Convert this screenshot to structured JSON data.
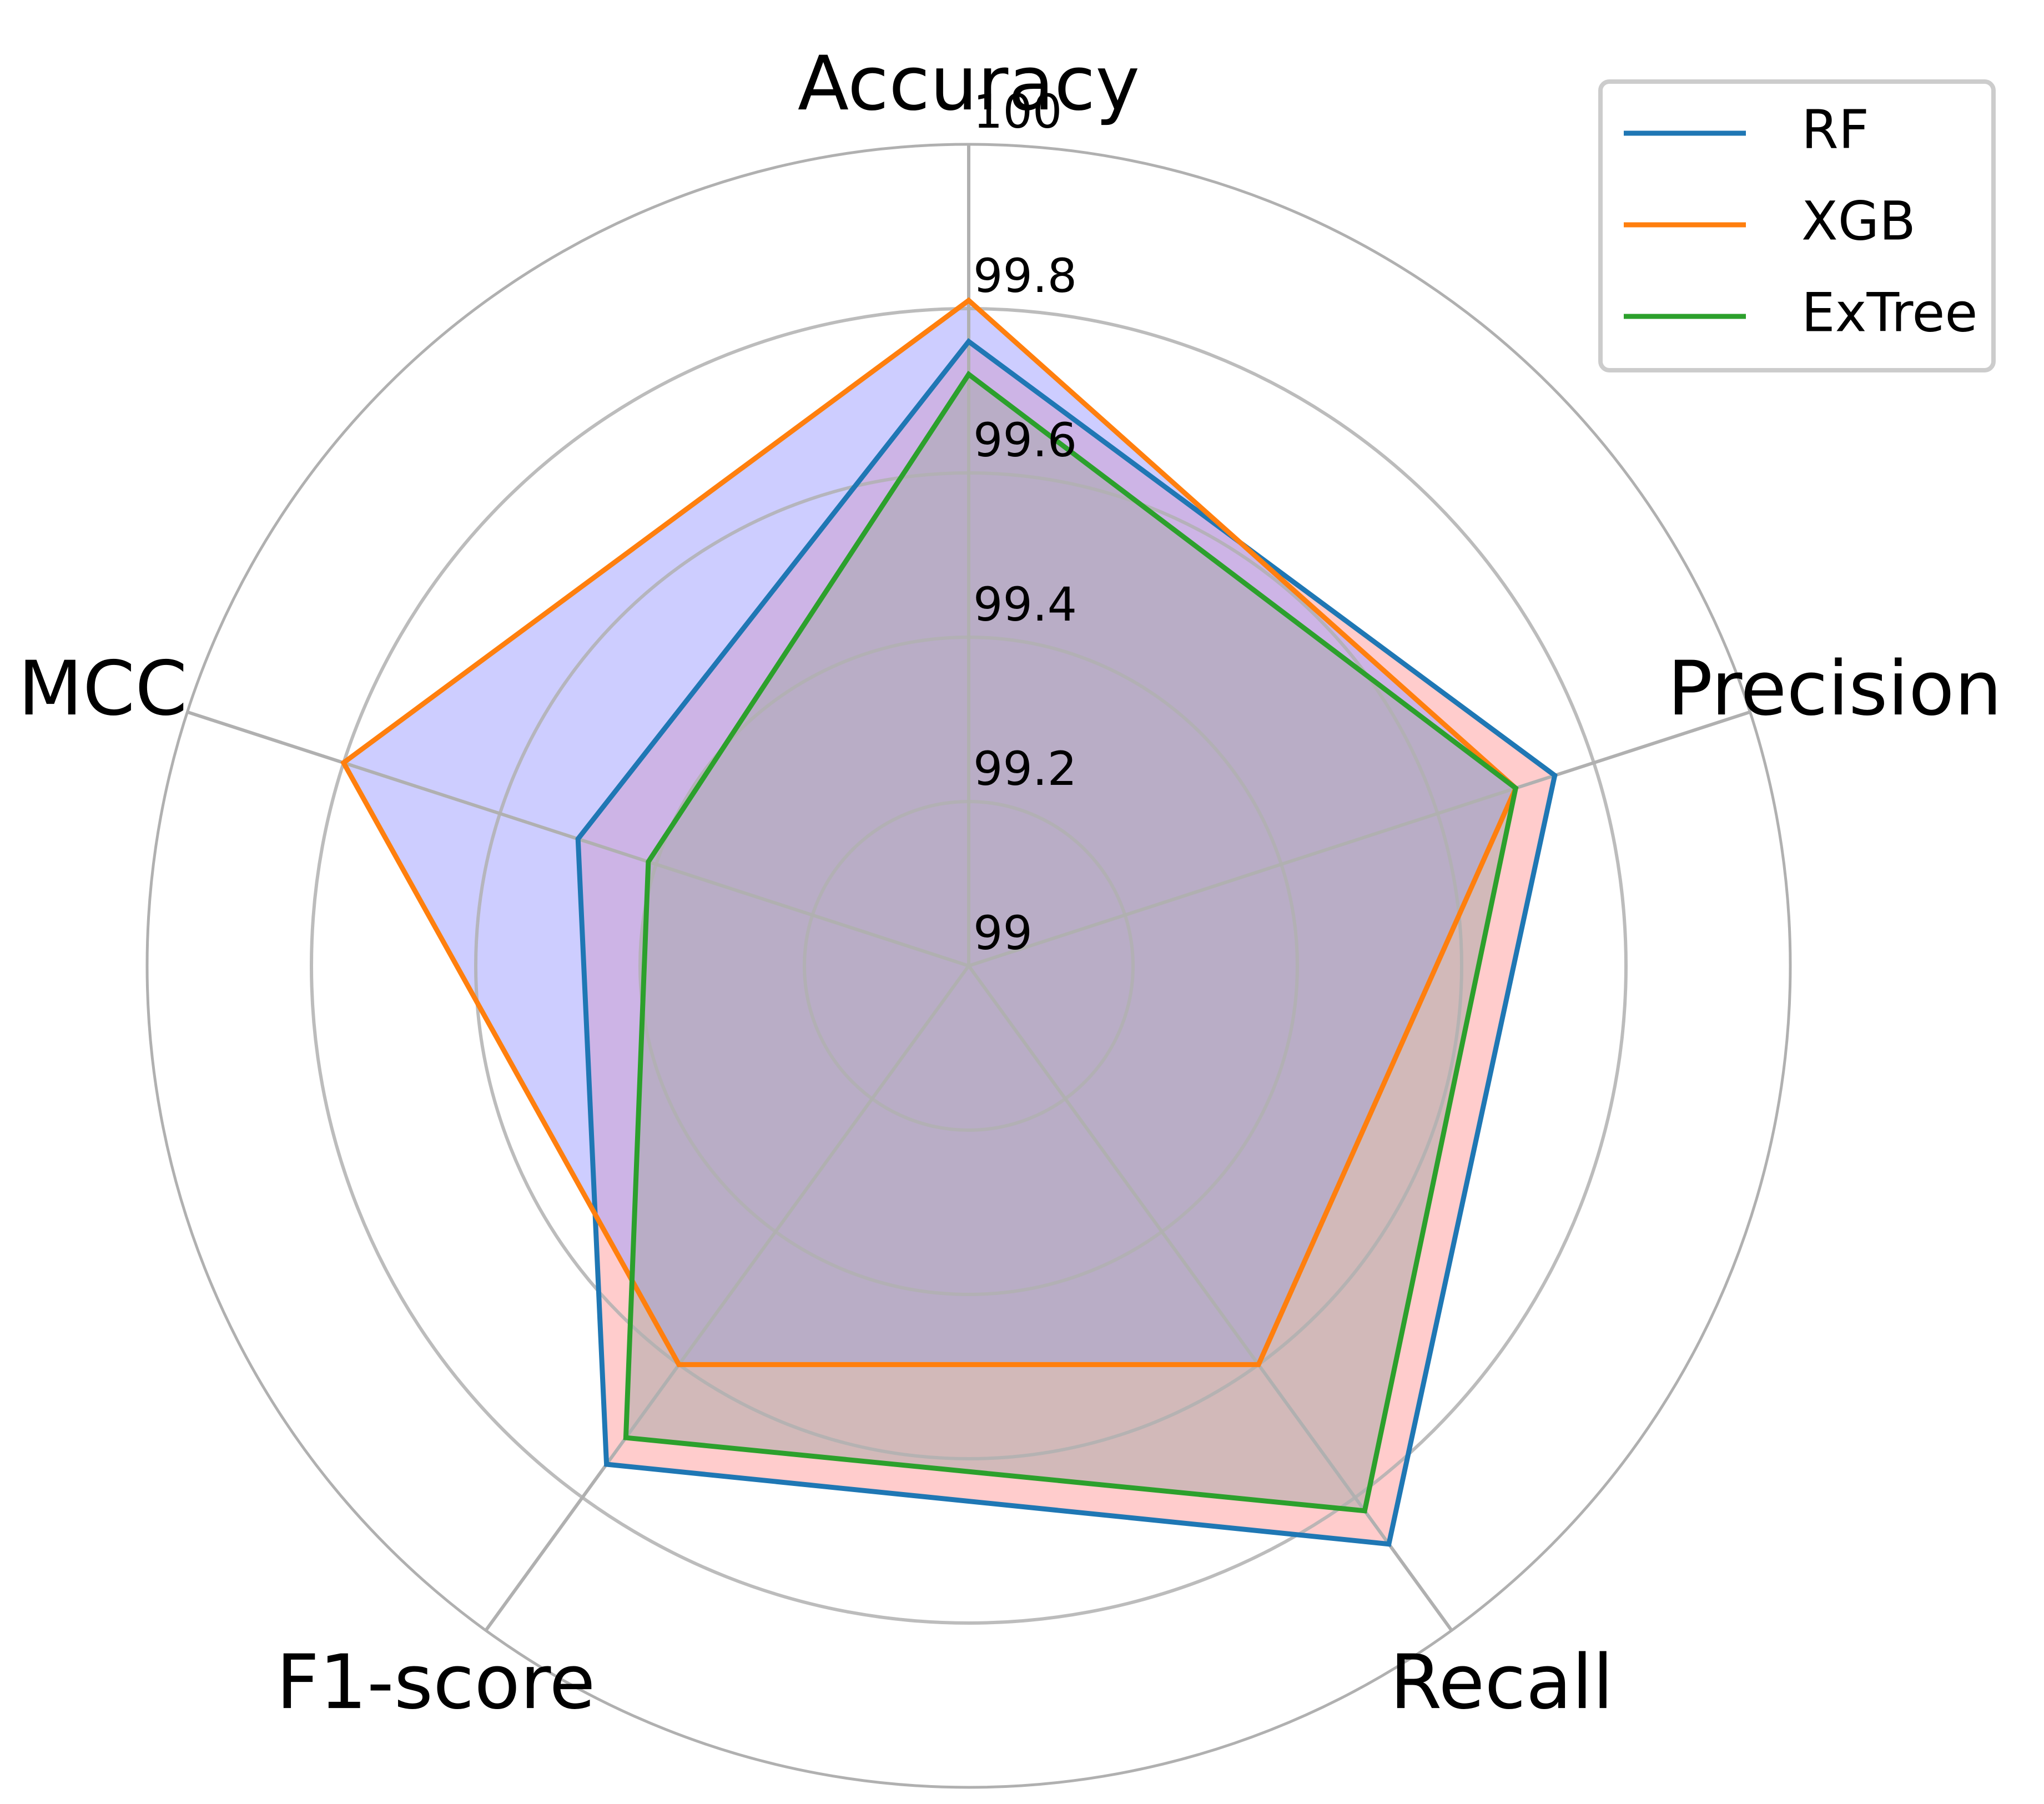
{
  "chart_data": {
    "type": "radar",
    "axes": [
      "Accuracy",
      "Precision",
      "Recall",
      "F1-score",
      "MCC"
    ],
    "rlim": [
      99,
      100
    ],
    "rticks": [
      "99",
      "99.2",
      "99.4",
      "99.6",
      "99.8",
      "100"
    ],
    "grid": true,
    "legend_position": "top-right",
    "series": [
      {
        "name": "RF",
        "color": "#1f77b4",
        "fill": "#ff9a9a",
        "values": [
          99.76,
          99.75,
          99.87,
          99.75,
          99.5
        ]
      },
      {
        "name": "XGB",
        "color": "#ff7f0e",
        "fill": "#9b9bff",
        "values": [
          99.81,
          99.7,
          99.6,
          99.6,
          99.8
        ]
      },
      {
        "name": "ExTree",
        "color": "#2ca02c",
        "fill": "#a5a5a5",
        "values": [
          99.72,
          99.7,
          99.82,
          99.71,
          99.41
        ]
      }
    ]
  }
}
